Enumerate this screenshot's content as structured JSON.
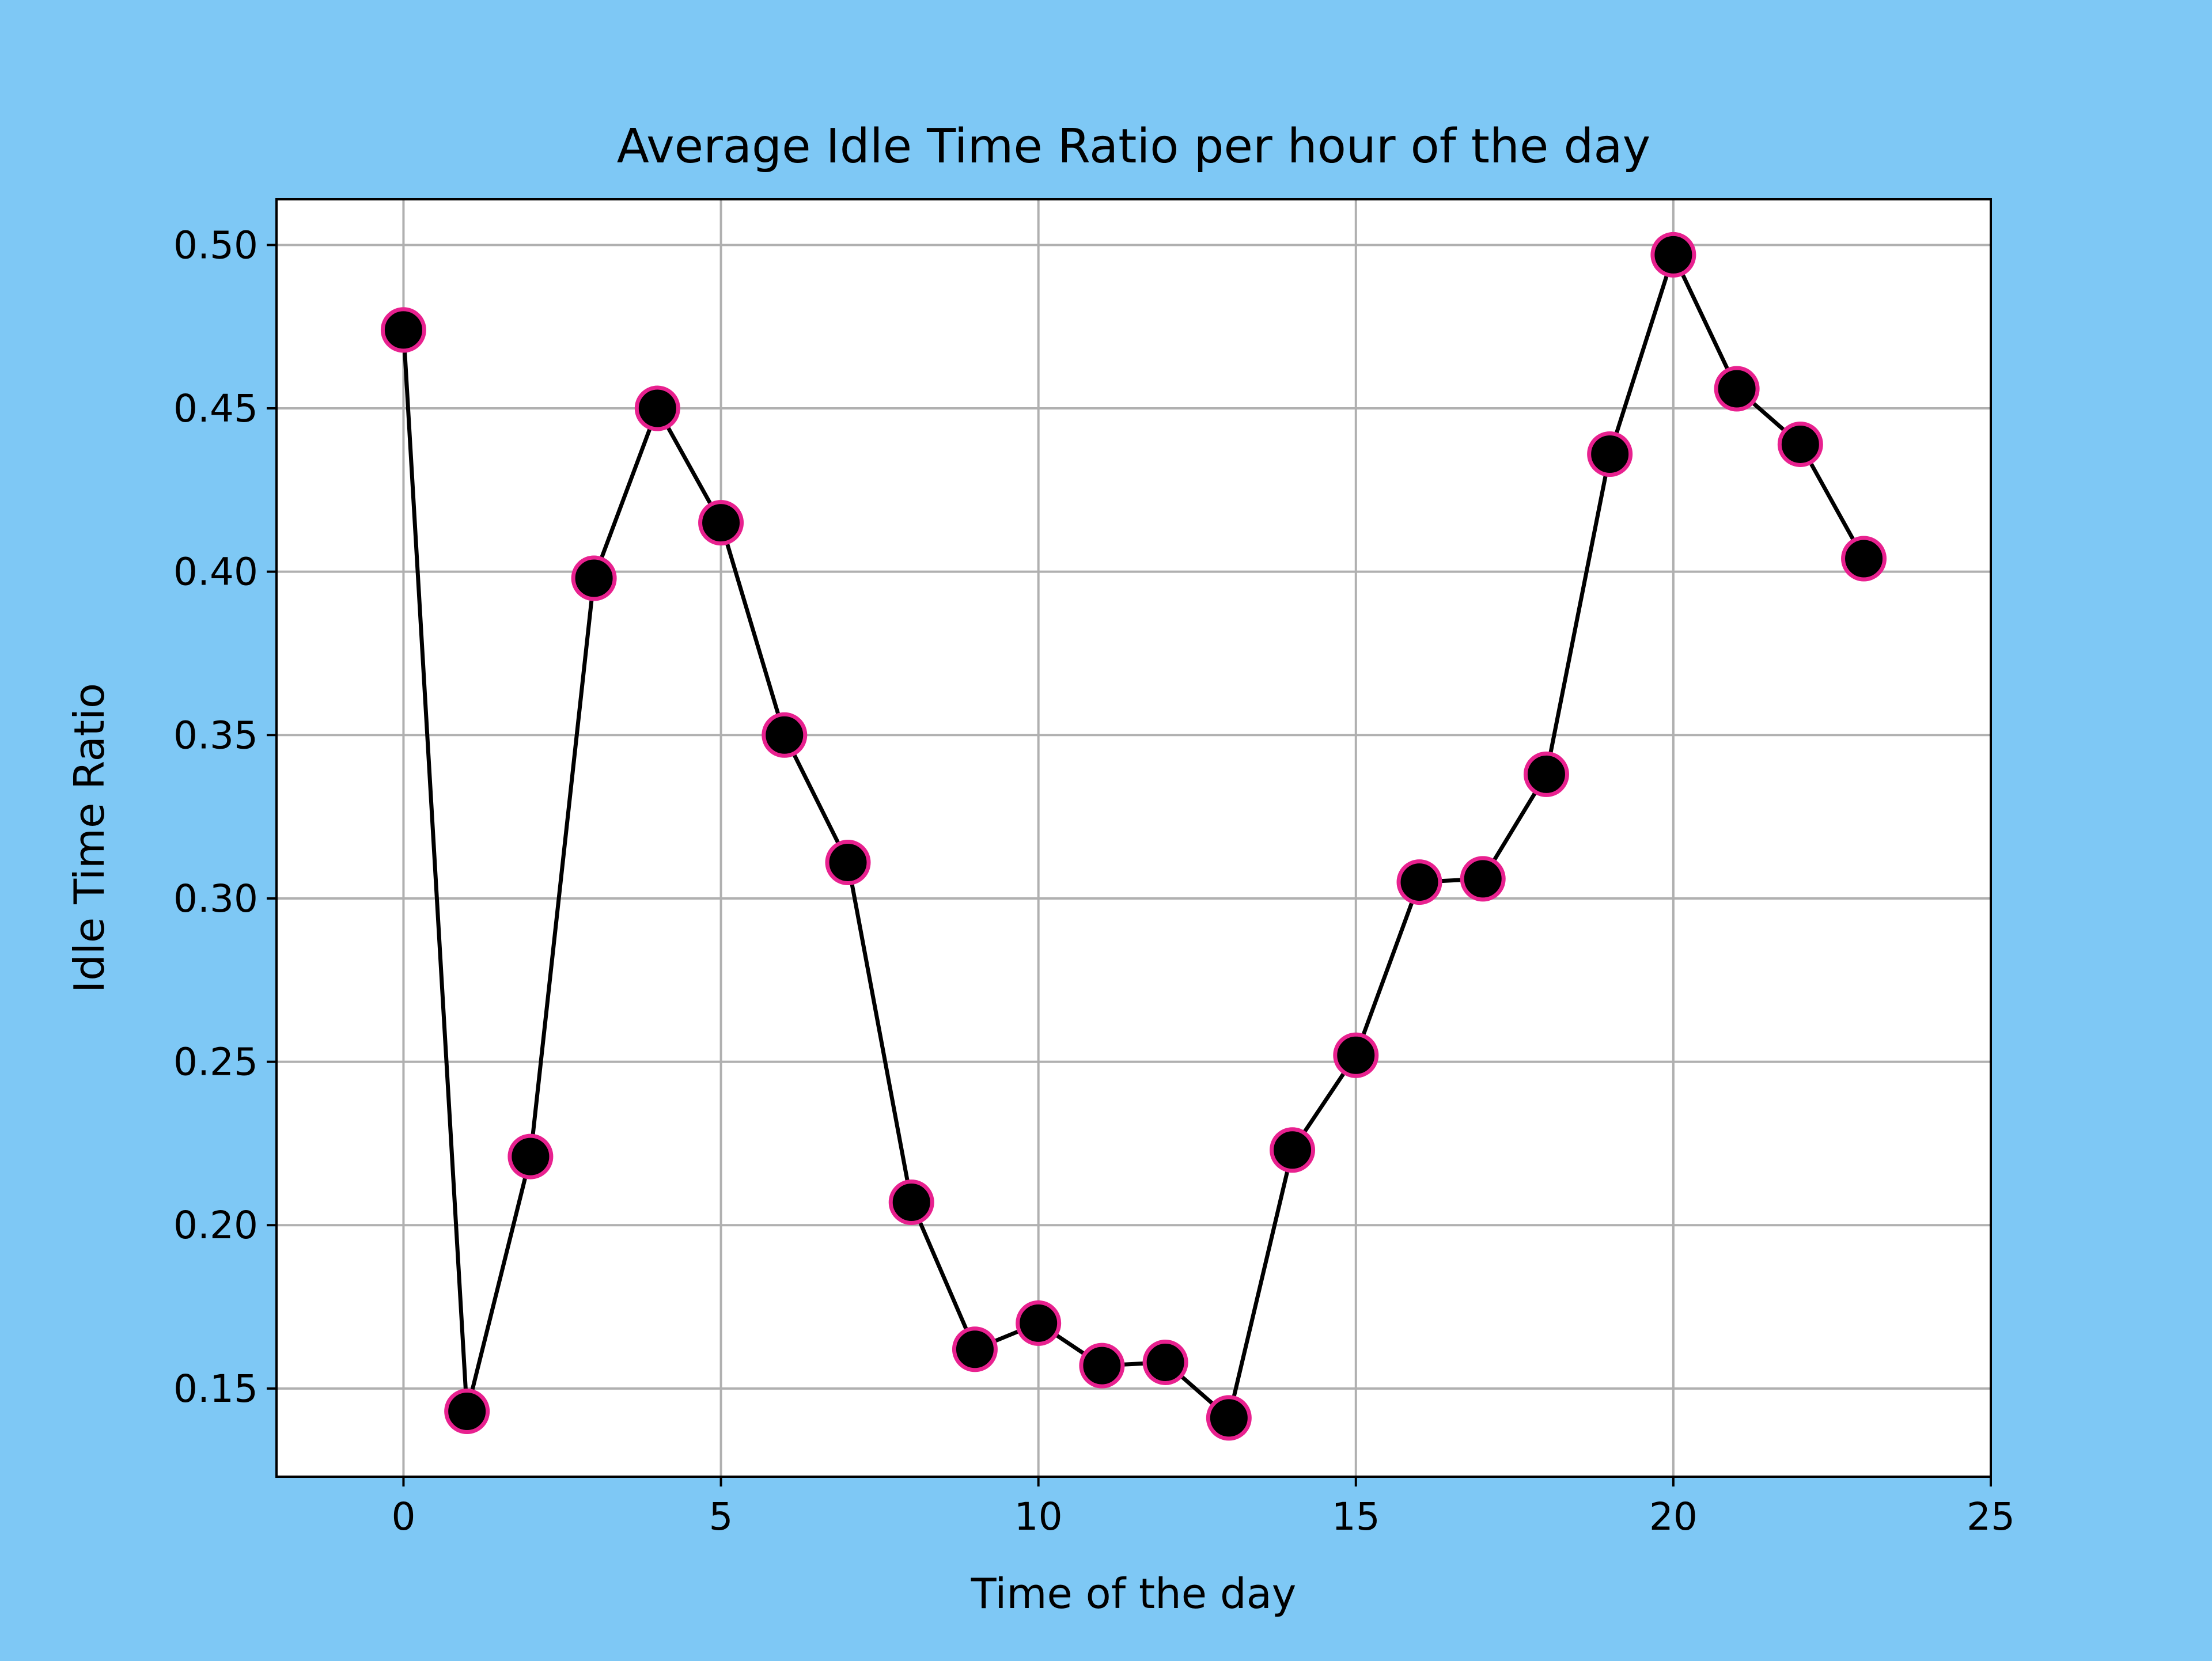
{
  "chart_data": {
    "type": "line",
    "title": "Average Idle Time Ratio per hour of the day",
    "xlabel": "Time of the day",
    "ylabel": "Idle Time Ratio",
    "xlim": [
      -2,
      25
    ],
    "ylim": [
      0.123,
      0.514
    ],
    "x_ticks": [
      "0",
      "5",
      "10",
      "15",
      "20",
      "25"
    ],
    "y_ticks": [
      "0.15",
      "0.20",
      "0.25",
      "0.30",
      "0.35",
      "0.40",
      "0.45",
      "0.50"
    ],
    "grid": true,
    "series": [
      {
        "x": [
          0,
          1,
          2,
          3,
          4,
          5,
          6,
          7,
          8,
          9,
          10,
          11,
          12,
          13,
          14,
          15,
          16,
          17,
          18,
          19,
          20,
          21,
          22,
          23
        ],
        "y": [
          0.474,
          0.143,
          0.221,
          0.398,
          0.45,
          0.415,
          0.35,
          0.311,
          0.207,
          0.162,
          0.17,
          0.157,
          0.158,
          0.141,
          0.223,
          0.252,
          0.305,
          0.306,
          0.338,
          0.436,
          0.497,
          0.456,
          0.439,
          0.404
        ],
        "line_color": "#000000",
        "marker_color": "#000000",
        "marker_edge_color": "#e8218f"
      }
    ],
    "background_color": "#7ec8f5",
    "plot_background_color": "#ffffff",
    "grid_color": "#b0b0b0"
  }
}
